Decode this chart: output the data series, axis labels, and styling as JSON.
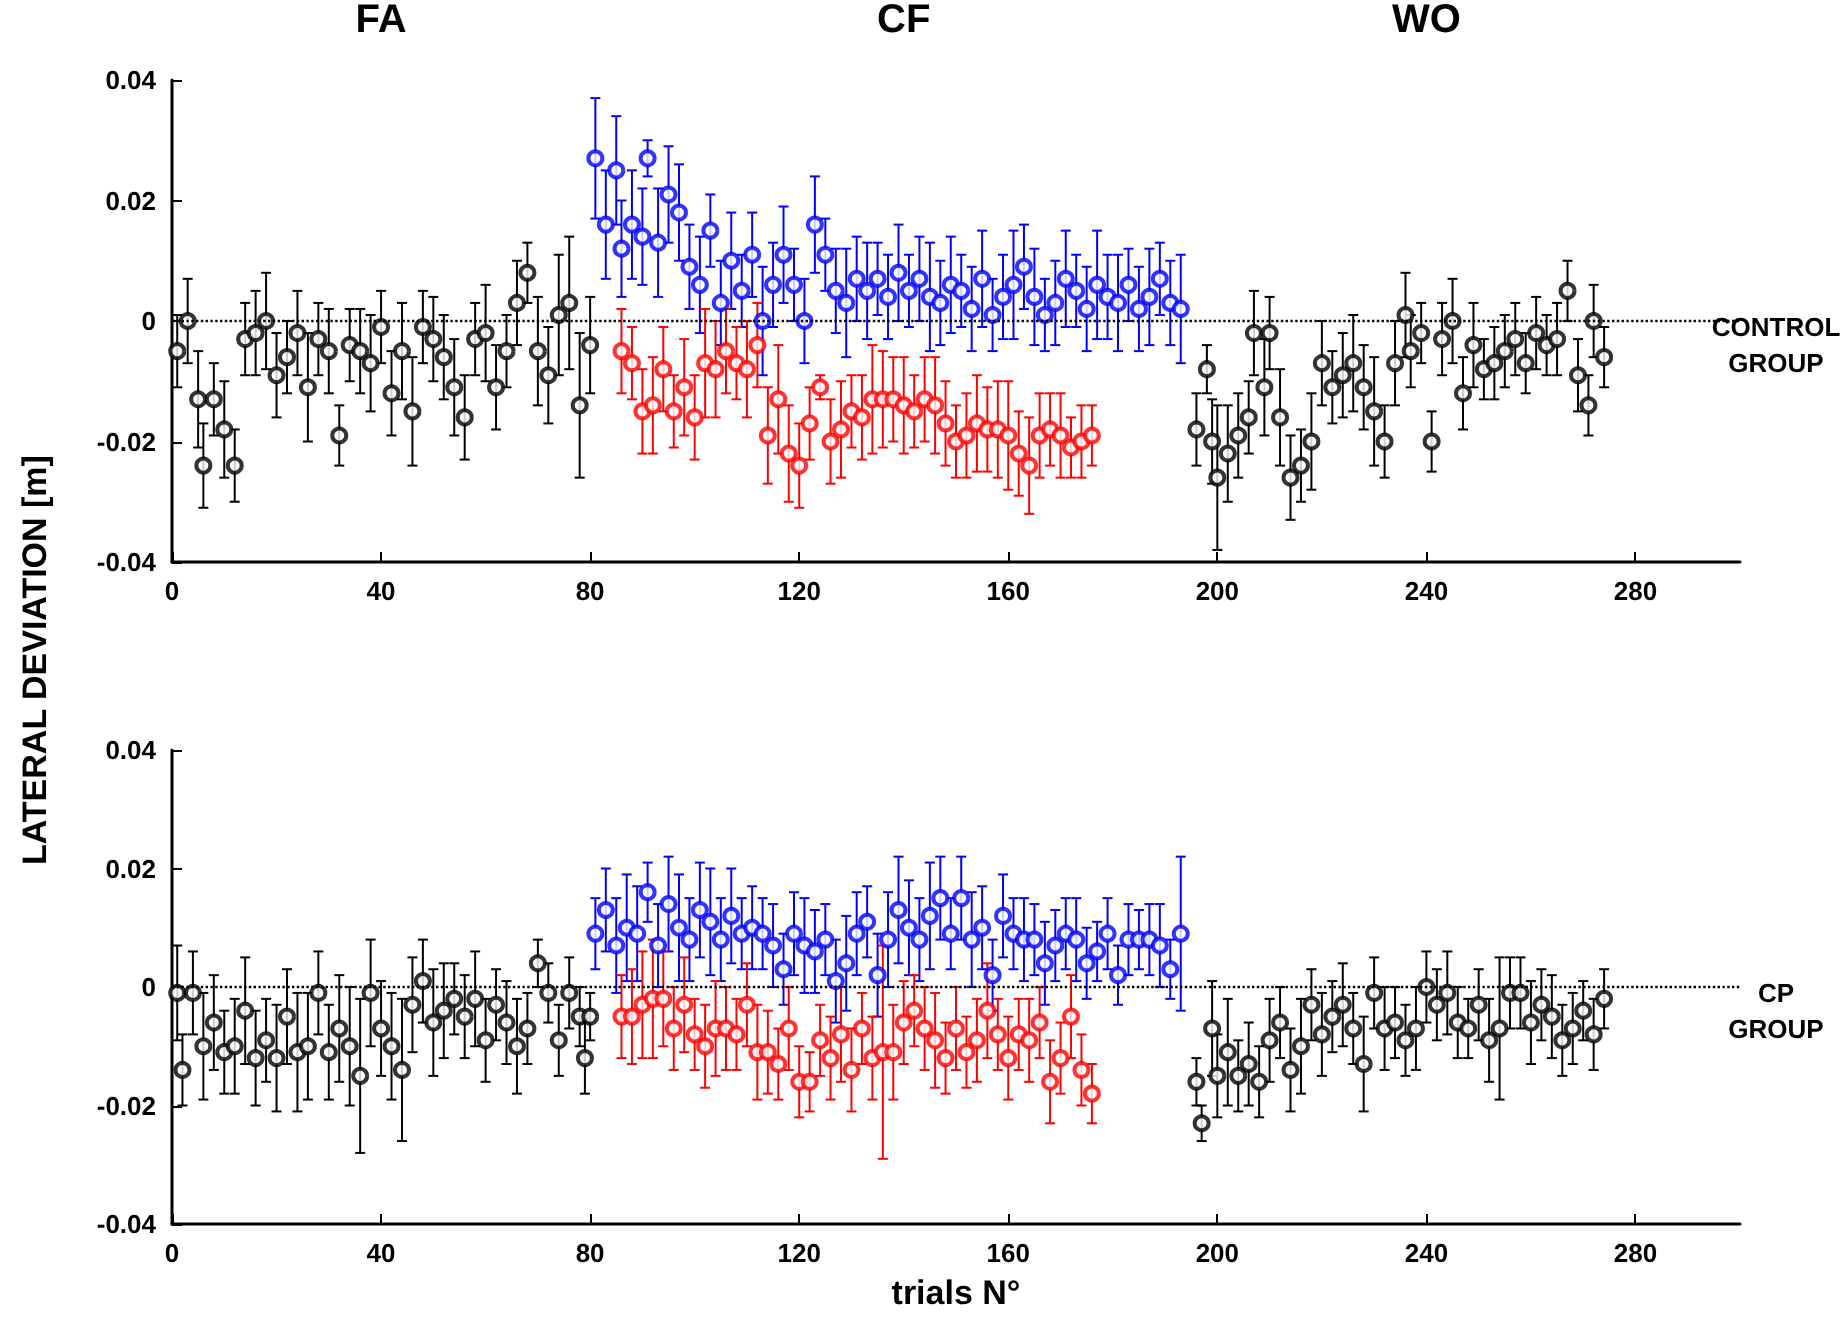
{
  "chart_data": [
    {
      "type": "scatter",
      "ylabel": "LATERAL DEVIATION [m]",
      "annotations": [
        "FA",
        "CF",
        "WO",
        "CONTROL GROUP"
      ],
      "xlim": [
        0,
        300
      ],
      "xticks": [
        0,
        40,
        80,
        120,
        160,
        200,
        240,
        280
      ],
      "ylim": [
        -0.04,
        0.04
      ],
      "yticks": [
        -0.04,
        -0.02,
        0,
        0.02,
        0.04
      ],
      "marker": "circle",
      "ref_lines": [
        {
          "axis": "y",
          "value": 0,
          "color": "#000000",
          "line_style": "dotted"
        }
      ],
      "series": [
        {
          "color": "#000000",
          "x": [
            1,
            3,
            5,
            6,
            8,
            10,
            12,
            14,
            16,
            18,
            20,
            22,
            24,
            26,
            28,
            30,
            32,
            34,
            36,
            38,
            40,
            42,
            44,
            46,
            48,
            50,
            52,
            54,
            56,
            58,
            60,
            62,
            64,
            66,
            68,
            70,
            72,
            74,
            76,
            78,
            80,
            196,
            198,
            199,
            200,
            202,
            204,
            206,
            207,
            209,
            210,
            212,
            214,
            216,
            218,
            220,
            222,
            224,
            226,
            228,
            230,
            232,
            234,
            236,
            237,
            239,
            241,
            243,
            245,
            247,
            249,
            251,
            253,
            255,
            257,
            259,
            261,
            263,
            265,
            267,
            269,
            271,
            272,
            274
          ],
          "values": [
            -0.005,
            0,
            -0.013,
            -0.024,
            -0.013,
            -0.018,
            -0.024,
            -0.003,
            -0.002,
            0,
            -0.009,
            -0.006,
            -0.002,
            -0.011,
            -0.003,
            -0.005,
            -0.019,
            -0.004,
            -0.005,
            -0.007,
            -0.001,
            -0.012,
            -0.005,
            -0.015,
            -0.001,
            -0.003,
            -0.006,
            -0.011,
            -0.016,
            -0.003,
            -0.002,
            -0.011,
            -0.005,
            0.003,
            0.008,
            -0.005,
            -0.009,
            0.001,
            0.003,
            -0.014,
            -0.004,
            -0.018,
            -0.008,
            -0.02,
            -0.026,
            -0.022,
            -0.019,
            -0.016,
            -0.002,
            -0.011,
            -0.002,
            -0.016,
            -0.026,
            -0.024,
            -0.02,
            -0.007,
            -0.011,
            -0.009,
            -0.007,
            -0.011,
            -0.015,
            -0.02,
            -0.007,
            0.001,
            -0.005,
            -0.002,
            -0.02,
            -0.003,
            0,
            -0.012,
            -0.004,
            -0.008,
            -0.007,
            -0.005,
            -0.003,
            -0.007,
            -0.002,
            -0.004,
            -0.003,
            0.005,
            -0.009,
            -0.014,
            0,
            -0.006
          ],
          "errors": [
            0.006,
            0.007,
            0.008,
            0.007,
            0.006,
            0.008,
            0.006,
            0.006,
            0.007,
            0.008,
            0.007,
            0.006,
            0.007,
            0.009,
            0.006,
            0.007,
            0.005,
            0.006,
            0.007,
            0.008,
            0.006,
            0.007,
            0.008,
            0.009,
            0.006,
            0.007,
            0.007,
            0.008,
            0.007,
            0.006,
            0.008,
            0.007,
            0.006,
            0.007,
            0.005,
            0.009,
            0.008,
            0.01,
            0.011,
            0.012,
            0.008,
            0.006,
            0.004,
            0.007,
            0.012,
            0.008,
            0.007,
            0.006,
            0.007,
            0.008,
            0.006,
            0.008,
            0.007,
            0.006,
            0.008,
            0.007,
            0.006,
            0.007,
            0.008,
            0.007,
            0.009,
            0.006,
            0.007,
            0.007,
            0.006,
            0.005,
            0.005,
            0.006,
            0.007,
            0.006,
            0.007,
            0.005,
            0.006,
            0.006,
            0.006,
            0.005,
            0.006,
            0.005,
            0.006,
            0.005,
            0.006,
            0.005,
            0.006,
            0.005
          ]
        },
        {
          "color": "#0000ff",
          "x": [
            81,
            83,
            85,
            86,
            88,
            90,
            91,
            93,
            95,
            97,
            99,
            101,
            103,
            105,
            107,
            109,
            111,
            113,
            115,
            117,
            119,
            121,
            123,
            125,
            127,
            129,
            131,
            133,
            135,
            137,
            139,
            141,
            143,
            145,
            147,
            149,
            151,
            153,
            155,
            157,
            159,
            161,
            163,
            165,
            167,
            169,
            171,
            173,
            175,
            177,
            179,
            181,
            183,
            185,
            187,
            189,
            191,
            193
          ],
          "values": [
            0.027,
            0.016,
            0.025,
            0.012,
            0.016,
            0.014,
            0.027,
            0.013,
            0.021,
            0.018,
            0.009,
            0.006,
            0.015,
            0.003,
            0.01,
            0.005,
            0.011,
            0,
            0.006,
            0.011,
            0.006,
            0,
            0.016,
            0.011,
            0.005,
            0.003,
            0.007,
            0.005,
            0.007,
            0.004,
            0.008,
            0.005,
            0.007,
            0.004,
            0.003,
            0.006,
            0.005,
            0.002,
            0.007,
            0.001,
            0.004,
            0.006,
            0.009,
            0.004,
            0.001,
            0.003,
            0.007,
            0.005,
            0.002,
            0.006,
            0.004,
            0.003,
            0.006,
            0.002,
            0.004,
            0.007,
            0.003,
            0.002
          ],
          "errors": [
            0.01,
            0.009,
            0.009,
            0.008,
            0.009,
            0.008,
            0.003,
            0.009,
            0.008,
            0.008,
            0.007,
            0.008,
            0.006,
            0.007,
            0.008,
            0.006,
            0.007,
            0.009,
            0.007,
            0.008,
            0.006,
            0.007,
            0.008,
            0.006,
            0.007,
            0.009,
            0.007,
            0.008,
            0.006,
            0.007,
            0.008,
            0.006,
            0.007,
            0.009,
            0.007,
            0.008,
            0.006,
            0.007,
            0.008,
            0.006,
            0.007,
            0.009,
            0.007,
            0.008,
            0.006,
            0.007,
            0.008,
            0.006,
            0.007,
            0.009,
            0.007,
            0.008,
            0.006,
            0.007,
            0.008,
            0.006,
            0.007,
            0.009
          ]
        },
        {
          "color": "#ff0000",
          "x": [
            86,
            88,
            90,
            92,
            94,
            96,
            98,
            100,
            102,
            104,
            106,
            108,
            110,
            112,
            114,
            116,
            118,
            120,
            122,
            124,
            126,
            128,
            130,
            132,
            134,
            136,
            138,
            140,
            142,
            144,
            146,
            148,
            150,
            152,
            154,
            156,
            158,
            160,
            162,
            164,
            166,
            168,
            170,
            172,
            174,
            176
          ],
          "values": [
            -0.005,
            -0.007,
            -0.015,
            -0.014,
            -0.008,
            -0.015,
            -0.011,
            -0.016,
            -0.007,
            -0.008,
            -0.005,
            -0.007,
            -0.008,
            -0.004,
            -0.019,
            -0.013,
            -0.022,
            -0.024,
            -0.017,
            -0.011,
            -0.02,
            -0.018,
            -0.015,
            -0.016,
            -0.013,
            -0.013,
            -0.013,
            -0.014,
            -0.015,
            -0.013,
            -0.014,
            -0.017,
            -0.02,
            -0.019,
            -0.017,
            -0.018,
            -0.018,
            -0.019,
            -0.022,
            -0.024,
            -0.019,
            -0.018,
            -0.019,
            -0.021,
            -0.02,
            -0.019
          ],
          "errors": [
            0.007,
            0.006,
            0.007,
            0.008,
            0.007,
            0.006,
            0.008,
            0.007,
            0.009,
            0.008,
            0.007,
            0.006,
            0.008,
            0.007,
            0.008,
            0.009,
            0.008,
            0.007,
            0.006,
            0.002,
            0.007,
            0.008,
            0.006,
            0.007,
            0.009,
            0.008,
            0.007,
            0.008,
            0.006,
            0.007,
            0.008,
            0.007,
            0.006,
            0.007,
            0.008,
            0.007,
            0.008,
            0.009,
            0.007,
            0.008,
            0.007,
            0.006,
            0.007,
            0.005,
            0.006,
            0.005
          ]
        }
      ]
    },
    {
      "type": "scatter",
      "xlabel": "trials N°",
      "annotations": [
        "CP GROUP"
      ],
      "xlim": [
        0,
        300
      ],
      "xticks": [
        0,
        40,
        80,
        120,
        160,
        200,
        240,
        280
      ],
      "ylim": [
        -0.04,
        0.04
      ],
      "yticks": [
        -0.04,
        -0.02,
        0,
        0.02,
        0.04
      ],
      "marker": "circle",
      "ref_lines": [
        {
          "axis": "y",
          "value": 0,
          "color": "#000000",
          "line_style": "dotted"
        }
      ],
      "series": [
        {
          "color": "#000000",
          "x": [
            1,
            2,
            4,
            6,
            8,
            10,
            12,
            14,
            16,
            18,
            20,
            22,
            24,
            26,
            28,
            30,
            32,
            34,
            36,
            38,
            40,
            42,
            44,
            46,
            48,
            50,
            52,
            54,
            56,
            58,
            60,
            62,
            64,
            66,
            68,
            70,
            72,
            74,
            76,
            78,
            79,
            80,
            196,
            197,
            199,
            200,
            202,
            204,
            206,
            208,
            210,
            212,
            214,
            216,
            218,
            220,
            222,
            224,
            226,
            228,
            230,
            232,
            234,
            236,
            238,
            240,
            242,
            244,
            246,
            248,
            250,
            252,
            254,
            256,
            258,
            260,
            262,
            264,
            266,
            268,
            270,
            272,
            274
          ],
          "values": [
            -0.001,
            -0.014,
            -0.001,
            -0.01,
            -0.006,
            -0.011,
            -0.01,
            -0.004,
            -0.012,
            -0.009,
            -0.012,
            -0.005,
            -0.011,
            -0.01,
            -0.001,
            -0.011,
            -0.007,
            -0.01,
            -0.015,
            -0.001,
            -0.007,
            -0.01,
            -0.014,
            -0.003,
            0.001,
            -0.006,
            -0.004,
            -0.002,
            -0.005,
            -0.002,
            -0.009,
            -0.003,
            -0.006,
            -0.01,
            -0.007,
            0.004,
            -0.001,
            -0.009,
            -0.001,
            -0.005,
            -0.012,
            -0.005,
            -0.016,
            -0.023,
            -0.007,
            -0.015,
            -0.011,
            -0.015,
            -0.013,
            -0.016,
            -0.009,
            -0.006,
            -0.014,
            -0.01,
            -0.003,
            -0.008,
            -0.005,
            -0.003,
            -0.007,
            -0.013,
            -0.001,
            -0.007,
            -0.006,
            -0.009,
            -0.007,
            0,
            -0.003,
            -0.001,
            -0.006,
            -0.007,
            -0.003,
            -0.009,
            -0.007,
            -0.001,
            -0.001,
            -0.006,
            -0.003,
            -0.005,
            -0.009,
            -0.007,
            -0.004,
            -0.008,
            -0.002
          ],
          "errors": [
            0.008,
            0.006,
            0.007,
            0.009,
            0.008,
            0.007,
            0.008,
            0.009,
            0.008,
            0.007,
            0.009,
            0.008,
            0.01,
            0.009,
            0.007,
            0.008,
            0.009,
            0.01,
            0.013,
            0.009,
            0.008,
            0.009,
            0.012,
            0.008,
            0.007,
            0.009,
            0.008,
            0.006,
            0.007,
            0.008,
            0.007,
            0.006,
            0.007,
            0.008,
            0.006,
            0.004,
            0.005,
            0.006,
            0.006,
            0.005,
            0.006,
            0.004,
            0.004,
            0.003,
            0.008,
            0.007,
            0.009,
            0.006,
            0.007,
            0.006,
            0.007,
            0.006,
            0.007,
            0.008,
            0.006,
            0.007,
            0.006,
            0.007,
            0.006,
            0.008,
            0.006,
            0.007,
            0.006,
            0.006,
            0.007,
            0.006,
            0.006,
            0.007,
            0.006,
            0.005,
            0.006,
            0.007,
            0.012,
            0.006,
            0.006,
            0.007,
            0.006,
            0.007,
            0.006,
            0.006,
            0.005,
            0.006,
            0.005
          ]
        },
        {
          "color": "#0000ff",
          "x": [
            81,
            83,
            85,
            87,
            89,
            91,
            93,
            95,
            97,
            99,
            101,
            103,
            105,
            107,
            109,
            111,
            113,
            115,
            117,
            119,
            121,
            123,
            125,
            127,
            129,
            131,
            133,
            135,
            137,
            139,
            141,
            143,
            145,
            147,
            149,
            151,
            153,
            155,
            157,
            159,
            161,
            163,
            165,
            167,
            169,
            171,
            173,
            175,
            177,
            179,
            181,
            183,
            185,
            187,
            189,
            191,
            193
          ],
          "values": [
            0.009,
            0.013,
            0.007,
            0.01,
            0.009,
            0.016,
            0.007,
            0.014,
            0.01,
            0.008,
            0.013,
            0.011,
            0.008,
            0.012,
            0.009,
            0.01,
            0.009,
            0.007,
            0.003,
            0.009,
            0.007,
            0.006,
            0.008,
            0.001,
            0.004,
            0.009,
            0.011,
            0.002,
            0.008,
            0.013,
            0.01,
            0.008,
            0.012,
            0.015,
            0.009,
            0.015,
            0.008,
            0.01,
            0.002,
            0.012,
            0.009,
            0.008,
            0.008,
            0.004,
            0.007,
            0.009,
            0.008,
            0.004,
            0.006,
            0.009,
            0.002,
            0.008,
            0.008,
            0.008,
            0.007,
            0.003,
            0.009
          ],
          "errors": [
            0.006,
            0.007,
            0.008,
            0.009,
            0.008,
            0.005,
            0.007,
            0.008,
            0.009,
            0.007,
            0.008,
            0.009,
            0.007,
            0.008,
            0.006,
            0.007,
            0.006,
            0.007,
            0.006,
            0.007,
            0.008,
            0.007,
            0.006,
            0.007,
            0.008,
            0.007,
            0.006,
            0.007,
            0.008,
            0.009,
            0.008,
            0.007,
            0.009,
            0.007,
            0.006,
            0.007,
            0.008,
            0.007,
            0.006,
            0.007,
            0.006,
            0.007,
            0.006,
            0.007,
            0.006,
            0.006,
            0.007,
            0.006,
            0.005,
            0.006,
            0.005,
            0.006,
            0.005,
            0.006,
            0.007,
            0.005,
            0.013
          ]
        },
        {
          "color": "#ff0000",
          "x": [
            86,
            88,
            90,
            92,
            94,
            96,
            98,
            100,
            102,
            104,
            106,
            108,
            110,
            112,
            114,
            116,
            118,
            120,
            122,
            124,
            126,
            128,
            130,
            132,
            134,
            136,
            138,
            140,
            142,
            144,
            146,
            148,
            150,
            152,
            154,
            156,
            158,
            160,
            162,
            164,
            166,
            168,
            170,
            172,
            174,
            176
          ],
          "values": [
            -0.005,
            -0.005,
            -0.003,
            -0.002,
            -0.002,
            -0.007,
            -0.003,
            -0.008,
            -0.01,
            -0.007,
            -0.007,
            -0.008,
            -0.003,
            -0.011,
            -0.011,
            -0.013,
            -0.007,
            -0.016,
            -0.016,
            -0.009,
            -0.012,
            -0.008,
            -0.014,
            -0.007,
            -0.012,
            -0.011,
            -0.011,
            -0.006,
            -0.004,
            -0.007,
            -0.009,
            -0.012,
            -0.007,
            -0.011,
            -0.009,
            -0.004,
            -0.008,
            -0.012,
            -0.008,
            -0.009,
            -0.006,
            -0.016,
            -0.012,
            -0.005,
            -0.014,
            -0.018
          ],
          "errors": [
            0.007,
            0.008,
            0.009,
            0.01,
            0.008,
            0.007,
            0.008,
            0.006,
            0.007,
            0.008,
            0.007,
            0.006,
            0.007,
            0.008,
            0.007,
            0.006,
            0.007,
            0.006,
            0.005,
            0.006,
            0.007,
            0.008,
            0.007,
            0.006,
            0.007,
            0.018,
            0.008,
            0.007,
            0.006,
            0.007,
            0.008,
            0.006,
            0.007,
            0.006,
            0.007,
            0.008,
            0.006,
            0.007,
            0.006,
            0.007,
            0.006,
            0.007,
            0.006,
            0.007,
            0.006,
            0.005
          ]
        }
      ]
    }
  ]
}
